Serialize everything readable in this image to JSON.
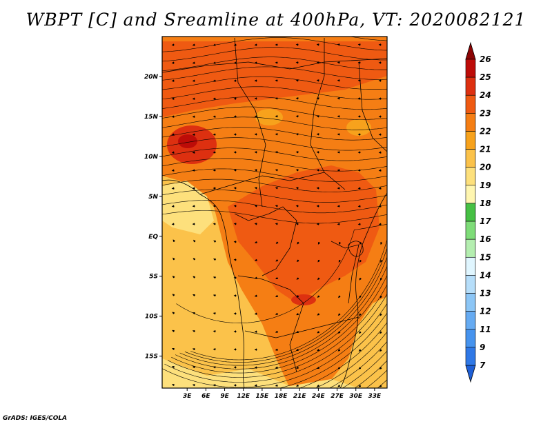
{
  "title": "WBPT [C] and Sreamline at 400hPa, VT: 2020082121",
  "credit": "GrADS: IGES/COLA",
  "map": {
    "lon_range": [
      -1,
      35
    ],
    "lat_range": [
      -19,
      25
    ],
    "x_ticks": [
      "3E",
      "6E",
      "9E",
      "12E",
      "15E",
      "18E",
      "21E",
      "24E",
      "27E",
      "30E",
      "33E"
    ],
    "x_tick_values": [
      3,
      6,
      9,
      12,
      15,
      18,
      21,
      24,
      27,
      30,
      33
    ],
    "y_ticks": [
      "20N",
      "15N",
      "10N",
      "5N",
      "EQ",
      "5S",
      "10S",
      "15S"
    ],
    "y_tick_values": [
      20,
      15,
      10,
      5,
      0,
      -5,
      -10,
      -15
    ]
  },
  "colorbar": {
    "levels": [
      "7",
      "9",
      "11",
      "12",
      "13",
      "14",
      "15",
      "16",
      "17",
      "18",
      "19",
      "20",
      "21",
      "22",
      "23",
      "24",
      "25",
      "26"
    ],
    "colors": [
      "#1e5fd6",
      "#2f78e6",
      "#4693ee",
      "#66abf2",
      "#8cc6f6",
      "#b6defa",
      "#e0f6ff",
      "#b4eeb0",
      "#7edc78",
      "#46c044",
      "#fff6b0",
      "#fde07c",
      "#fbc24a",
      "#f7a21c",
      "#f57e14",
      "#ef5a12",
      "#dd3010",
      "#bd0c08",
      "#8c0404"
    ]
  },
  "legend_colors": {
    "ocean_light": "#fbc24a",
    "ocean_pale": "#fde07c",
    "land_mid": "#f57e14",
    "land_hot": "#ef5a12",
    "hot_spot": "#dd3010"
  }
}
